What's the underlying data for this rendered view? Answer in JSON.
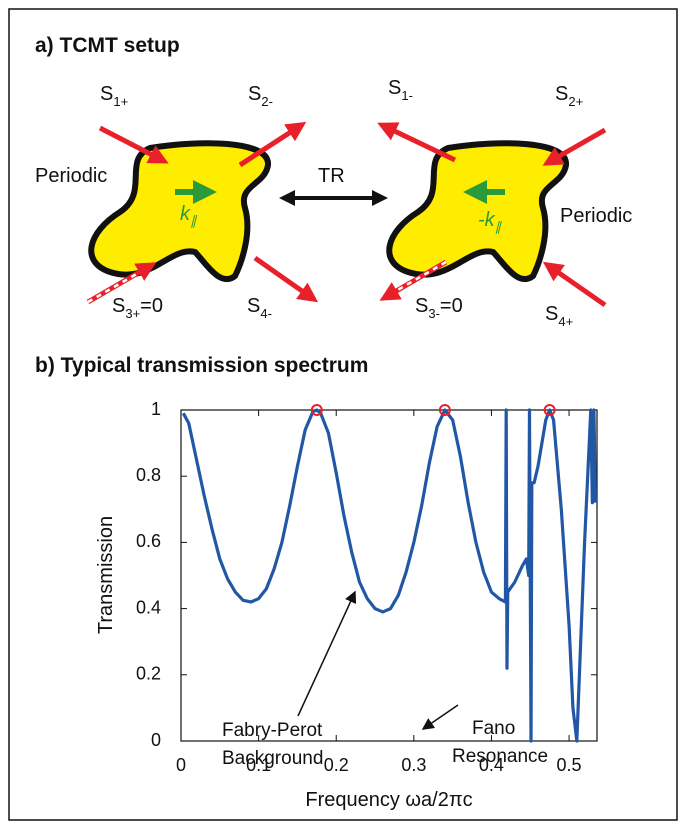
{
  "panel_a": {
    "title": "a) TCMT setup",
    "ports": [
      {
        "main": "S",
        "sub": "1+"
      },
      {
        "main": "S",
        "sub": "2-"
      },
      {
        "main": "S",
        "sub": "3+",
        "suffix": "=0"
      },
      {
        "main": "S",
        "sub": "4-"
      },
      {
        "main": "S",
        "sub": "1-"
      },
      {
        "main": "S",
        "sub": "2+"
      },
      {
        "main": "S",
        "sub": "3-",
        "suffix": "=0"
      },
      {
        "main": "S",
        "sub": "4+"
      }
    ],
    "left_medium": "Periodic",
    "right_medium": "Periodic",
    "operation": "TR",
    "left_wavevector": {
      "main": "k",
      "sub": "∥"
    },
    "right_wavevector": {
      "main": "-k",
      "sub": "∥"
    }
  },
  "chart_data": {
    "type": "line",
    "title": "b) Typical transmission spectrum",
    "x_label": "Frequency ωa/2πc",
    "y_label": "Transmission",
    "xlim": [
      0,
      0.536
    ],
    "ylim": [
      0,
      1
    ],
    "xticks": [
      0,
      0.1,
      0.2,
      0.3,
      0.4,
      0.5
    ],
    "yticks": [
      0,
      0.2,
      0.4,
      0.6,
      0.8,
      1
    ],
    "grid": false,
    "color": "#2257a6",
    "x": [
      0.003,
      0.01,
      0.02,
      0.03,
      0.04,
      0.05,
      0.06,
      0.07,
      0.08,
      0.09,
      0.1,
      0.11,
      0.12,
      0.13,
      0.14,
      0.15,
      0.16,
      0.17,
      0.175,
      0.18,
      0.19,
      0.2,
      0.21,
      0.22,
      0.23,
      0.24,
      0.25,
      0.26,
      0.27,
      0.28,
      0.29,
      0.3,
      0.31,
      0.32,
      0.33,
      0.34,
      0.35,
      0.36,
      0.37,
      0.38,
      0.39,
      0.4,
      0.41,
      0.418,
      0.419,
      0.42,
      0.421,
      0.43,
      0.44,
      0.445,
      0.448,
      0.449,
      0.451,
      0.452,
      0.455,
      0.46,
      0.47,
      0.475,
      0.48,
      0.49,
      0.5,
      0.505,
      0.51,
      0.52,
      0.528,
      0.53,
      0.532,
      0.534
    ],
    "values": [
      0.99,
      0.96,
      0.85,
      0.74,
      0.64,
      0.55,
      0.49,
      0.45,
      0.425,
      0.42,
      0.43,
      0.46,
      0.52,
      0.6,
      0.71,
      0.83,
      0.94,
      0.995,
      1.0,
      0.99,
      0.93,
      0.81,
      0.68,
      0.57,
      0.48,
      0.43,
      0.4,
      0.39,
      0.4,
      0.44,
      0.51,
      0.6,
      0.71,
      0.84,
      0.95,
      1.0,
      0.97,
      0.86,
      0.72,
      0.6,
      0.51,
      0.45,
      0.43,
      0.42,
      1.0,
      0.22,
      0.45,
      0.48,
      0.53,
      0.55,
      0.5,
      1.0,
      0.0,
      0.78,
      0.78,
      0.83,
      0.97,
      1.0,
      0.97,
      0.7,
      0.35,
      0.1,
      0.0,
      0.6,
      1.0,
      0.72,
      1.0,
      0.72
    ],
    "peaks": {
      "x": [
        0.175,
        0.34,
        0.475
      ],
      "values": [
        1,
        1,
        1
      ],
      "color": "#e8202a"
    },
    "annotations": [
      {
        "lines": [
          "Fabry-Perot",
          "Background"
        ]
      },
      {
        "lines": [
          "Fano",
          "Resonance"
        ]
      }
    ]
  }
}
